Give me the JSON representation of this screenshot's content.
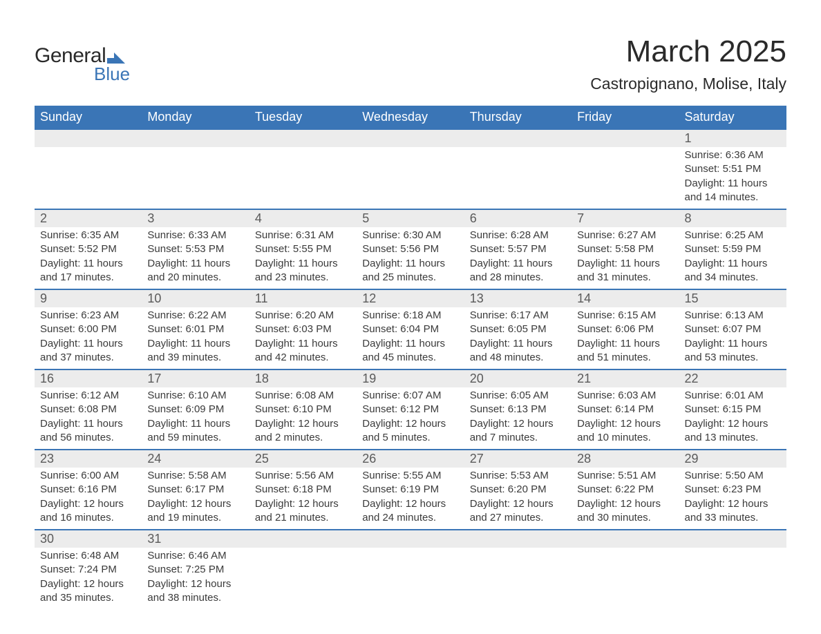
{
  "logo": {
    "word1": "General",
    "word2": "Blue",
    "mark_color": "#3a75b6"
  },
  "title": "March 2025",
  "location": "Castropignano, Molise, Italy",
  "colors": {
    "header_bg": "#3a75b6",
    "header_text": "#ffffff",
    "daynum_bg": "#ececec",
    "row_border": "#3a75b6",
    "body_text": "#3a3a3a",
    "daynum_text": "#5a5a5a",
    "page_bg": "#ffffff"
  },
  "typography": {
    "title_fontsize": 44,
    "location_fontsize": 23,
    "dayheader_fontsize": 18,
    "daynum_fontsize": 18,
    "detail_fontsize": 15
  },
  "layout": {
    "columns": 7,
    "rows": 6,
    "first_day_column_index": 6
  },
  "day_headers": [
    "Sunday",
    "Monday",
    "Tuesday",
    "Wednesday",
    "Thursday",
    "Friday",
    "Saturday"
  ],
  "weeks": [
    [
      null,
      null,
      null,
      null,
      null,
      null,
      {
        "n": "1",
        "sunrise": "Sunrise: 6:36 AM",
        "sunset": "Sunset: 5:51 PM",
        "day1": "Daylight: 11 hours",
        "day2": "and 14 minutes."
      }
    ],
    [
      {
        "n": "2",
        "sunrise": "Sunrise: 6:35 AM",
        "sunset": "Sunset: 5:52 PM",
        "day1": "Daylight: 11 hours",
        "day2": "and 17 minutes."
      },
      {
        "n": "3",
        "sunrise": "Sunrise: 6:33 AM",
        "sunset": "Sunset: 5:53 PM",
        "day1": "Daylight: 11 hours",
        "day2": "and 20 minutes."
      },
      {
        "n": "4",
        "sunrise": "Sunrise: 6:31 AM",
        "sunset": "Sunset: 5:55 PM",
        "day1": "Daylight: 11 hours",
        "day2": "and 23 minutes."
      },
      {
        "n": "5",
        "sunrise": "Sunrise: 6:30 AM",
        "sunset": "Sunset: 5:56 PM",
        "day1": "Daylight: 11 hours",
        "day2": "and 25 minutes."
      },
      {
        "n": "6",
        "sunrise": "Sunrise: 6:28 AM",
        "sunset": "Sunset: 5:57 PM",
        "day1": "Daylight: 11 hours",
        "day2": "and 28 minutes."
      },
      {
        "n": "7",
        "sunrise": "Sunrise: 6:27 AM",
        "sunset": "Sunset: 5:58 PM",
        "day1": "Daylight: 11 hours",
        "day2": "and 31 minutes."
      },
      {
        "n": "8",
        "sunrise": "Sunrise: 6:25 AM",
        "sunset": "Sunset: 5:59 PM",
        "day1": "Daylight: 11 hours",
        "day2": "and 34 minutes."
      }
    ],
    [
      {
        "n": "9",
        "sunrise": "Sunrise: 6:23 AM",
        "sunset": "Sunset: 6:00 PM",
        "day1": "Daylight: 11 hours",
        "day2": "and 37 minutes."
      },
      {
        "n": "10",
        "sunrise": "Sunrise: 6:22 AM",
        "sunset": "Sunset: 6:01 PM",
        "day1": "Daylight: 11 hours",
        "day2": "and 39 minutes."
      },
      {
        "n": "11",
        "sunrise": "Sunrise: 6:20 AM",
        "sunset": "Sunset: 6:03 PM",
        "day1": "Daylight: 11 hours",
        "day2": "and 42 minutes."
      },
      {
        "n": "12",
        "sunrise": "Sunrise: 6:18 AM",
        "sunset": "Sunset: 6:04 PM",
        "day1": "Daylight: 11 hours",
        "day2": "and 45 minutes."
      },
      {
        "n": "13",
        "sunrise": "Sunrise: 6:17 AM",
        "sunset": "Sunset: 6:05 PM",
        "day1": "Daylight: 11 hours",
        "day2": "and 48 minutes."
      },
      {
        "n": "14",
        "sunrise": "Sunrise: 6:15 AM",
        "sunset": "Sunset: 6:06 PM",
        "day1": "Daylight: 11 hours",
        "day2": "and 51 minutes."
      },
      {
        "n": "15",
        "sunrise": "Sunrise: 6:13 AM",
        "sunset": "Sunset: 6:07 PM",
        "day1": "Daylight: 11 hours",
        "day2": "and 53 minutes."
      }
    ],
    [
      {
        "n": "16",
        "sunrise": "Sunrise: 6:12 AM",
        "sunset": "Sunset: 6:08 PM",
        "day1": "Daylight: 11 hours",
        "day2": "and 56 minutes."
      },
      {
        "n": "17",
        "sunrise": "Sunrise: 6:10 AM",
        "sunset": "Sunset: 6:09 PM",
        "day1": "Daylight: 11 hours",
        "day2": "and 59 minutes."
      },
      {
        "n": "18",
        "sunrise": "Sunrise: 6:08 AM",
        "sunset": "Sunset: 6:10 PM",
        "day1": "Daylight: 12 hours",
        "day2": "and 2 minutes."
      },
      {
        "n": "19",
        "sunrise": "Sunrise: 6:07 AM",
        "sunset": "Sunset: 6:12 PM",
        "day1": "Daylight: 12 hours",
        "day2": "and 5 minutes."
      },
      {
        "n": "20",
        "sunrise": "Sunrise: 6:05 AM",
        "sunset": "Sunset: 6:13 PM",
        "day1": "Daylight: 12 hours",
        "day2": "and 7 minutes."
      },
      {
        "n": "21",
        "sunrise": "Sunrise: 6:03 AM",
        "sunset": "Sunset: 6:14 PM",
        "day1": "Daylight: 12 hours",
        "day2": "and 10 minutes."
      },
      {
        "n": "22",
        "sunrise": "Sunrise: 6:01 AM",
        "sunset": "Sunset: 6:15 PM",
        "day1": "Daylight: 12 hours",
        "day2": "and 13 minutes."
      }
    ],
    [
      {
        "n": "23",
        "sunrise": "Sunrise: 6:00 AM",
        "sunset": "Sunset: 6:16 PM",
        "day1": "Daylight: 12 hours",
        "day2": "and 16 minutes."
      },
      {
        "n": "24",
        "sunrise": "Sunrise: 5:58 AM",
        "sunset": "Sunset: 6:17 PM",
        "day1": "Daylight: 12 hours",
        "day2": "and 19 minutes."
      },
      {
        "n": "25",
        "sunrise": "Sunrise: 5:56 AM",
        "sunset": "Sunset: 6:18 PM",
        "day1": "Daylight: 12 hours",
        "day2": "and 21 minutes."
      },
      {
        "n": "26",
        "sunrise": "Sunrise: 5:55 AM",
        "sunset": "Sunset: 6:19 PM",
        "day1": "Daylight: 12 hours",
        "day2": "and 24 minutes."
      },
      {
        "n": "27",
        "sunrise": "Sunrise: 5:53 AM",
        "sunset": "Sunset: 6:20 PM",
        "day1": "Daylight: 12 hours",
        "day2": "and 27 minutes."
      },
      {
        "n": "28",
        "sunrise": "Sunrise: 5:51 AM",
        "sunset": "Sunset: 6:22 PM",
        "day1": "Daylight: 12 hours",
        "day2": "and 30 minutes."
      },
      {
        "n": "29",
        "sunrise": "Sunrise: 5:50 AM",
        "sunset": "Sunset: 6:23 PM",
        "day1": "Daylight: 12 hours",
        "day2": "and 33 minutes."
      }
    ],
    [
      {
        "n": "30",
        "sunrise": "Sunrise: 6:48 AM",
        "sunset": "Sunset: 7:24 PM",
        "day1": "Daylight: 12 hours",
        "day2": "and 35 minutes."
      },
      {
        "n": "31",
        "sunrise": "Sunrise: 6:46 AM",
        "sunset": "Sunset: 7:25 PM",
        "day1": "Daylight: 12 hours",
        "day2": "and 38 minutes."
      },
      null,
      null,
      null,
      null,
      null
    ]
  ]
}
